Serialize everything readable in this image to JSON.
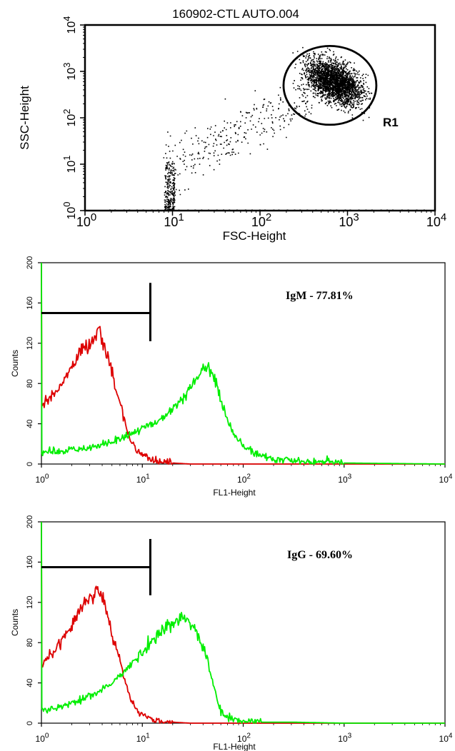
{
  "chart_data": [
    {
      "type": "scatter",
      "title": "160902-CTL AUTO.004",
      "xlabel": "FSC-Height",
      "ylabel": "SSC-Height",
      "x_scale": "log",
      "y_scale": "log",
      "xlim": [
        1,
        10000
      ],
      "ylim": [
        1,
        10000
      ],
      "x_ticks": [
        {
          "value": 1,
          "base": "10",
          "exp": "0"
        },
        {
          "value": 10,
          "base": "10",
          "exp": "1"
        },
        {
          "value": 100,
          "base": "10",
          "exp": "2"
        },
        {
          "value": 1000,
          "base": "10",
          "exp": "3"
        },
        {
          "value": 10000,
          "base": "10",
          "exp": "4"
        }
      ],
      "y_ticks": [
        {
          "value": 1,
          "base": "10",
          "exp": "0"
        },
        {
          "value": 10,
          "base": "10",
          "exp": "1"
        },
        {
          "value": 100,
          "base": "10",
          "exp": "2"
        },
        {
          "value": 1000,
          "base": "10",
          "exp": "3"
        },
        {
          "value": 10000,
          "base": "10",
          "exp": "4"
        }
      ],
      "gate": {
        "label": "R1",
        "shape": "ellipse",
        "center": [
          630,
          500
        ],
        "x_range": [
          200,
          2300
        ],
        "y_range": [
          70,
          3500
        ]
      },
      "populations": [
        {
          "kind": "dense-cluster",
          "center": [
            700,
            600
          ],
          "x_range": [
            250,
            1500
          ],
          "y_range": [
            150,
            2500
          ],
          "points": 2600
        },
        {
          "kind": "debris-column",
          "x_range": [
            8,
            10.5
          ],
          "y_range": [
            1,
            12
          ],
          "points": 260
        },
        {
          "kind": "scattered-events",
          "x_range": [
            8,
            400
          ],
          "y_range": [
            2,
            400
          ],
          "points": 320
        },
        {
          "kind": "baseline-events",
          "x_range": [
            1,
            10000
          ],
          "y_value": 1,
          "points": 45
        }
      ]
    },
    {
      "type": "line",
      "xlabel": "FL1-Height",
      "ylabel": "Counts",
      "x_scale": "log",
      "xlim": [
        1,
        10000
      ],
      "ylim": [
        0,
        200
      ],
      "y_ticks": [
        0,
        40,
        80,
        120,
        160,
        200
      ],
      "x_ticks": [
        {
          "value": 1,
          "base": "10",
          "exp": "0"
        },
        {
          "value": 10,
          "base": "10",
          "exp": "1"
        },
        {
          "value": 100,
          "base": "10",
          "exp": "2"
        },
        {
          "value": 1000,
          "base": "10",
          "exp": "3"
        },
        {
          "value": 10000,
          "base": "10",
          "exp": "4"
        }
      ],
      "annotation": "IgM - 77.81%",
      "marker": {
        "x_range": [
          1,
          12
        ],
        "y": 150,
        "cap_range": [
          122,
          180
        ]
      },
      "series": [
        {
          "color": "#dd0000",
          "x": [
            1,
            1.01,
            1.05,
            1.1,
            1.2,
            1.4,
            1.6,
            1.8,
            2.0,
            2.3,
            2.6,
            3.0,
            3.4,
            3.7,
            4.0,
            4.6,
            5.2,
            6.0,
            6.8,
            7.6,
            8.5,
            10,
            12,
            15,
            20,
            30,
            50,
            100,
            1000,
            10000
          ],
          "values": [
            200,
            58,
            60,
            63,
            67,
            72,
            80,
            88,
            98,
            108,
            116,
            121,
            127,
            135,
            124,
            103,
            85,
            63,
            40,
            24,
            15,
            8,
            5,
            2,
            1,
            0,
            0,
            0,
            0,
            0
          ]
        },
        {
          "color": "#00ee00",
          "x": [
            1,
            1.01,
            1.05,
            1.2,
            1.5,
            2,
            2.5,
            3,
            4,
            5,
            6,
            7,
            8,
            10,
            13,
            16,
            20,
            25,
            30,
            35,
            40,
            45,
            50,
            55,
            60,
            70,
            80,
            100,
            130,
            160,
            200,
            300,
            500,
            1000,
            10000
          ],
          "values": [
            200,
            12,
            12,
            12,
            13,
            14,
            15,
            16,
            19,
            22,
            25,
            28,
            31,
            35,
            40,
            46,
            55,
            66,
            77,
            86,
            96,
            94,
            88,
            78,
            62,
            44,
            30,
            18,
            11,
            8,
            5,
            3,
            2,
            1,
            0
          ]
        }
      ]
    },
    {
      "type": "line",
      "xlabel": "FL1-Height",
      "ylabel": "Counts",
      "x_scale": "log",
      "xlim": [
        1,
        10000
      ],
      "ylim": [
        0,
        200
      ],
      "y_ticks": [
        0,
        40,
        80,
        120,
        160,
        200
      ],
      "x_ticks": [
        {
          "value": 1,
          "base": "10",
          "exp": "0"
        },
        {
          "value": 10,
          "base": "10",
          "exp": "1"
        },
        {
          "value": 100,
          "base": "10",
          "exp": "2"
        },
        {
          "value": 1000,
          "base": "10",
          "exp": "3"
        },
        {
          "value": 10000,
          "base": "10",
          "exp": "4"
        }
      ],
      "annotation": "IgG - 69.60%",
      "marker": {
        "x_range": [
          1,
          12
        ],
        "y": 155,
        "cap_range": [
          127,
          183
        ]
      },
      "series": [
        {
          "color": "#dd0000",
          "x": [
            1,
            1.01,
            1.05,
            1.1,
            1.2,
            1.4,
            1.6,
            1.8,
            2.0,
            2.3,
            2.6,
            3.0,
            3.4,
            3.7,
            4.0,
            4.6,
            5.2,
            6.0,
            6.8,
            7.6,
            8.5,
            10,
            12,
            15,
            20,
            30,
            50,
            100,
            1000,
            10000
          ],
          "values": [
            200,
            58,
            60,
            63,
            68,
            74,
            82,
            90,
            100,
            110,
            118,
            124,
            130,
            137,
            126,
            104,
            84,
            62,
            40,
            24,
            15,
            8,
            5,
            2,
            1,
            0,
            0,
            0,
            0,
            0
          ]
        },
        {
          "color": "#00ee00",
          "x": [
            1,
            1.01,
            1.05,
            1.2,
            1.5,
            2,
            2.5,
            3,
            4,
            5,
            6,
            7,
            8,
            10,
            13,
            16,
            20,
            24,
            28,
            32,
            36,
            40,
            45,
            50,
            55,
            60,
            70,
            80,
            100,
            150,
            300,
            1000,
            10000
          ],
          "values": [
            200,
            12,
            13,
            14,
            16,
            20,
            23,
            27,
            33,
            40,
            47,
            54,
            60,
            70,
            82,
            92,
            98,
            104,
            100,
            95,
            86,
            74,
            58,
            40,
            24,
            12,
            6,
            4,
            2,
            1,
            1,
            0,
            0
          ]
        }
      ]
    }
  ]
}
